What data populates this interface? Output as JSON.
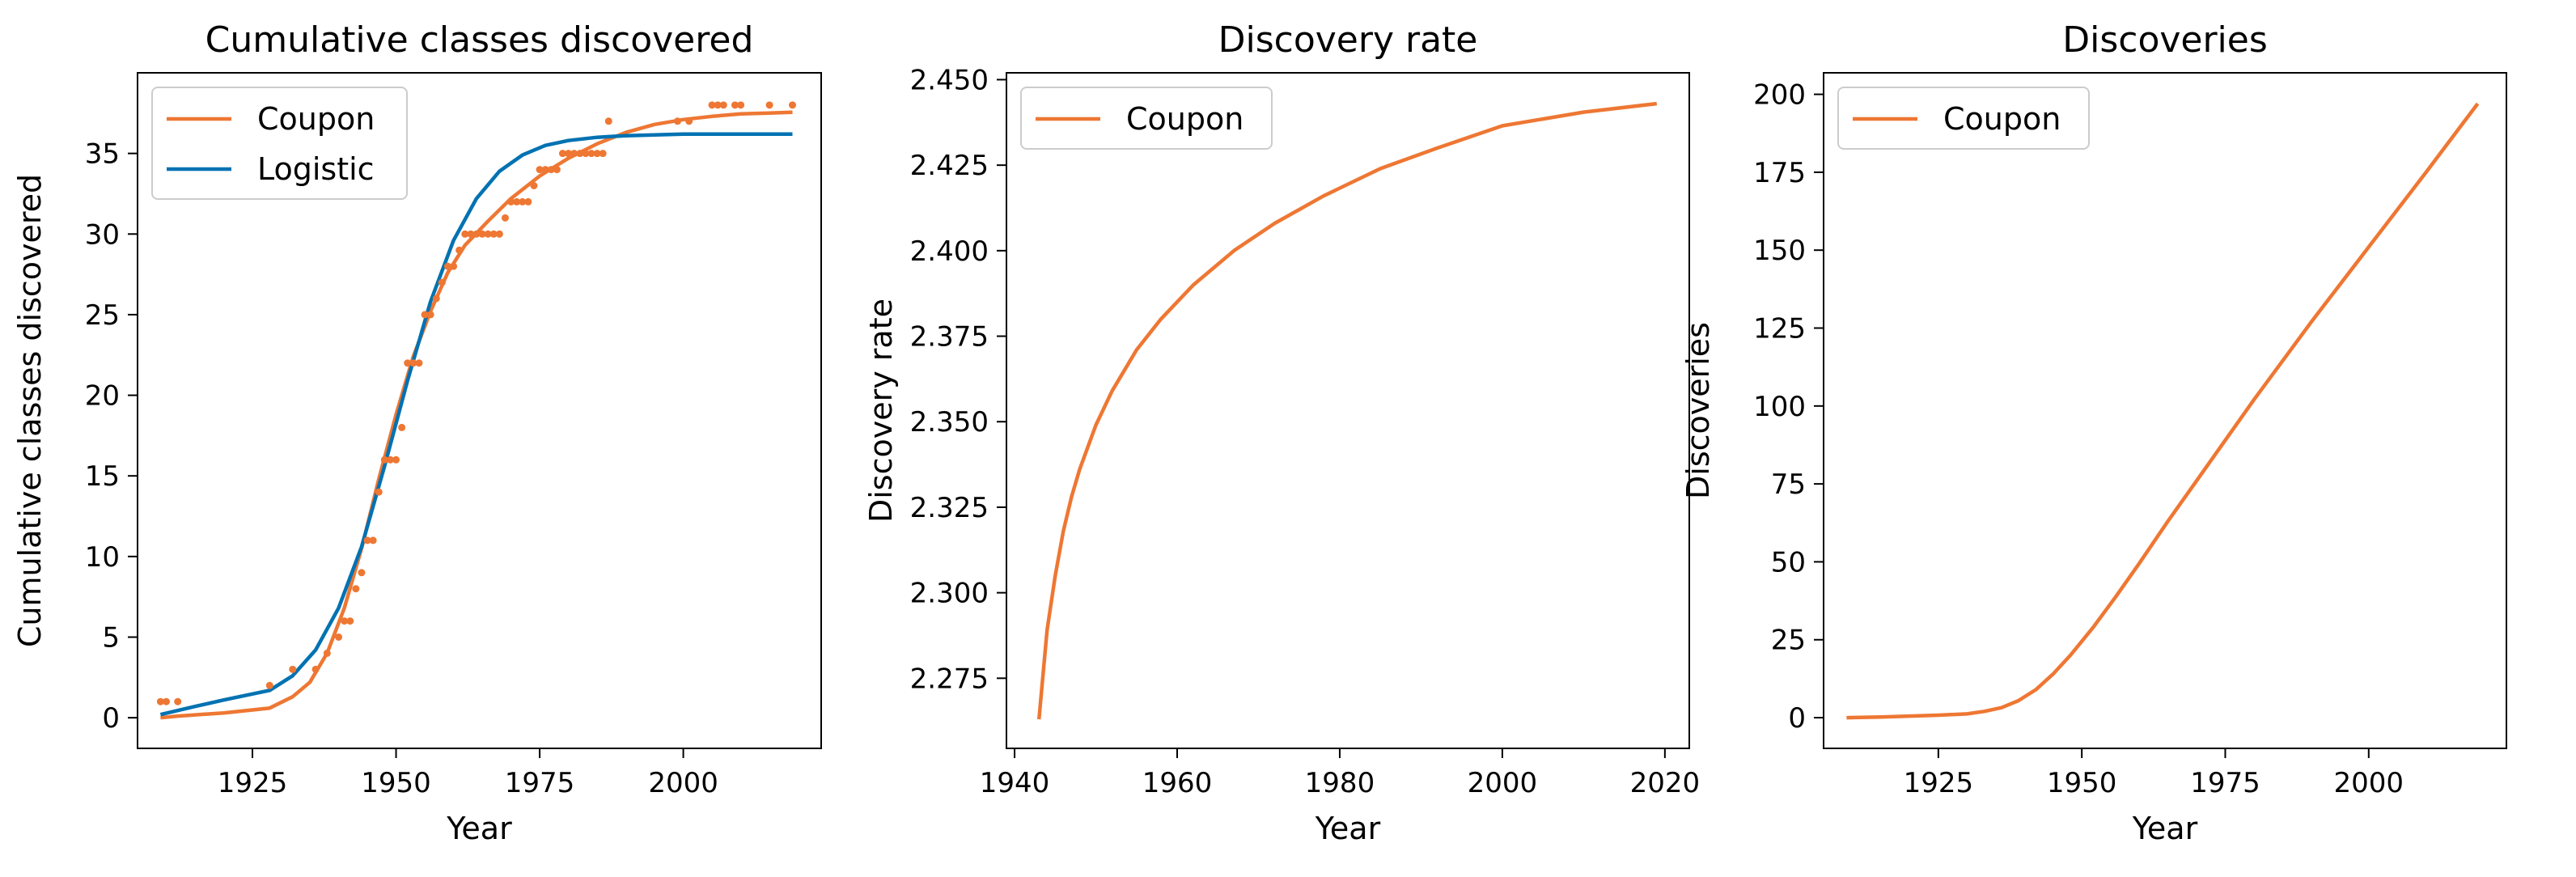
{
  "colors": {
    "coupon": "#ee7733",
    "logistic": "#0072b2",
    "axis": "#000000",
    "legend_border": "#cccccc"
  },
  "chart_data": [
    {
      "type": "line",
      "title": "Cumulative classes discovered",
      "xlabel": "Year",
      "ylabel": "Cumulative classes discovered",
      "xlim": [
        1905,
        2024
      ],
      "ylim": [
        -1.9,
        40.0
      ],
      "xticks": [
        1925,
        1950,
        1975,
        2000
      ],
      "yticks": [
        0,
        5,
        10,
        15,
        20,
        25,
        30,
        35
      ],
      "grid": false,
      "legend": "top-left",
      "series": [
        {
          "name": "Coupon",
          "color": "coupon",
          "kind": "line",
          "x": [
            1909,
            1912,
            1920,
            1928,
            1932,
            1935,
            1938,
            1941,
            1944,
            1947,
            1950,
            1953,
            1956,
            1959,
            1962,
            1966,
            1970,
            1975,
            1980,
            1985,
            1990,
            1995,
            2000,
            2005,
            2010,
            2015,
            2019
          ],
          "y": [
            0,
            0.1,
            0.3,
            0.6,
            1.3,
            2.2,
            4.0,
            6.8,
            10.5,
            14.8,
            18.8,
            22.4,
            25.2,
            27.6,
            29.3,
            30.8,
            32.2,
            33.6,
            34.7,
            35.6,
            36.3,
            36.8,
            37.1,
            37.3,
            37.45,
            37.5,
            37.55
          ]
        },
        {
          "name": "Logistic",
          "color": "logistic",
          "kind": "line",
          "x": [
            1909,
            1915,
            1920,
            1928,
            1932,
            1936,
            1940,
            1944,
            1948,
            1952,
            1956,
            1960,
            1964,
            1968,
            1972,
            1976,
            1980,
            1985,
            1990,
            2000,
            2010,
            2019
          ],
          "y": [
            0.2,
            0.7,
            1.1,
            1.7,
            2.6,
            4.2,
            6.8,
            10.6,
            15.6,
            20.9,
            25.8,
            29.6,
            32.2,
            33.9,
            34.9,
            35.5,
            35.8,
            36.0,
            36.1,
            36.2,
            36.2,
            36.2
          ]
        },
        {
          "name": "",
          "color": "coupon",
          "kind": "scatter",
          "x": [
            1909,
            1910,
            1912,
            1928,
            1932,
            1936,
            1938,
            1940,
            1941,
            1942,
            1943,
            1944,
            1945,
            1946,
            1947,
            1948,
            1949,
            1950,
            1951,
            1952,
            1953,
            1954,
            1955,
            1956,
            1957,
            1958,
            1959,
            1960,
            1961,
            1962,
            1963,
            1964,
            1965,
            1966,
            1967,
            1968,
            1969,
            1970,
            1971,
            1972,
            1973,
            1974,
            1975,
            1976,
            1977,
            1978,
            1979,
            1980,
            1981,
            1982,
            1983,
            1984,
            1985,
            1986,
            1987,
            1999,
            2001,
            2005,
            2006,
            2007,
            2009,
            2010,
            2015,
            2019
          ],
          "y": [
            1,
            1,
            1,
            2,
            3,
            3,
            4,
            5,
            6,
            6,
            8,
            9,
            11,
            11,
            14,
            16,
            16,
            16,
            18,
            22,
            22,
            22,
            25,
            25,
            26,
            27,
            28,
            28,
            29,
            30,
            30,
            30,
            30,
            30,
            30,
            30,
            31,
            32,
            32,
            32,
            32,
            33,
            34,
            34,
            34,
            34,
            35,
            35,
            35,
            35,
            35,
            35,
            35,
            35,
            37,
            37,
            37,
            38,
            38,
            38,
            38,
            38,
            38,
            38
          ]
        }
      ]
    },
    {
      "type": "line",
      "title": "Discovery rate",
      "xlabel": "Year",
      "ylabel": "Discovery rate",
      "xlim": [
        1939,
        2023
      ],
      "ylim": [
        2.2545,
        2.452
      ],
      "xticks": [
        1940,
        1960,
        1980,
        2000,
        2020
      ],
      "yticks": [
        2.275,
        2.3,
        2.325,
        2.35,
        2.375,
        2.4,
        2.425,
        2.45
      ],
      "ytick_labels": [
        "2.275",
        "2.300",
        "2.325",
        "2.350",
        "2.375",
        "2.400",
        "2.425",
        "2.450"
      ],
      "grid": false,
      "legend": "top-left",
      "series": [
        {
          "name": "Coupon",
          "color": "coupon",
          "kind": "line",
          "x": [
            1943,
            1944,
            1945,
            1946,
            1947,
            1948,
            1950,
            1952,
            1955,
            1958,
            1962,
            1967,
            1972,
            1978,
            1985,
            1992,
            2000,
            2010,
            2019
          ],
          "y": [
            2.263,
            2.289,
            2.305,
            2.318,
            2.328,
            2.336,
            2.349,
            2.359,
            2.371,
            2.38,
            2.39,
            2.4,
            2.408,
            2.416,
            2.424,
            2.43,
            2.4365,
            2.4405,
            2.443
          ]
        }
      ]
    },
    {
      "type": "line",
      "title": "Discoveries",
      "xlabel": "Year",
      "ylabel": "Discoveries",
      "xlim": [
        1905,
        2024
      ],
      "ylim": [
        -9.85,
        206.9
      ],
      "xticks": [
        1925,
        1950,
        1975,
        2000
      ],
      "yticks": [
        0,
        25,
        50,
        75,
        100,
        125,
        150,
        175,
        200
      ],
      "grid": false,
      "legend": "top-left",
      "series": [
        {
          "name": "Coupon",
          "color": "coupon",
          "kind": "line",
          "x": [
            1909,
            1915,
            1920,
            1925,
            1930,
            1933,
            1936,
            1939,
            1942,
            1945,
            1948,
            1952,
            1956,
            1960,
            1965,
            1970,
            1980,
            1990,
            2000,
            2010,
            2019
          ],
          "y": [
            0,
            0.2,
            0.5,
            0.8,
            1.2,
            2.0,
            3.2,
            5.5,
            9.0,
            14.0,
            20.0,
            29.0,
            39.0,
            49.5,
            63.0,
            76.0,
            102.0,
            127.0,
            151.0,
            175.0,
            197.0
          ]
        }
      ]
    }
  ]
}
